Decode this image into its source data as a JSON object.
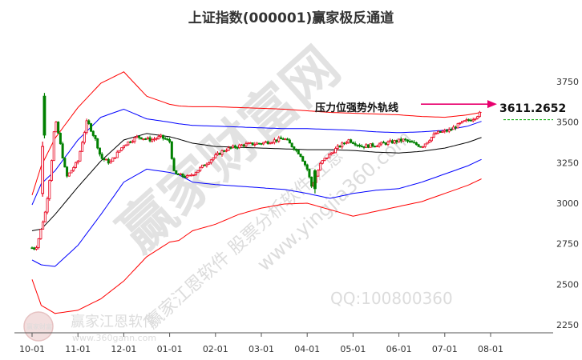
{
  "chart_data": {
    "type": "line",
    "title": "上证指数(000001)赢家极反通道",
    "ylim": [
      2225,
      3875
    ],
    "y_ticks": [
      2250,
      2500,
      2750,
      3000,
      3250,
      3500,
      3750
    ],
    "x_ticks": [
      "10-01",
      "11-01",
      "12-01",
      "01-01",
      "02-01",
      "03-01",
      "04-01",
      "05-01",
      "06-01",
      "07-01",
      "08-01"
    ],
    "annotation": {
      "text": "压力位强势外轨线",
      "value": "3611.2652"
    },
    "watermarks": {
      "main": "赢家财富网",
      "diag1": "赢家江恩软件 股票分析软件 江恩",
      "site": "www.yingjia360.com",
      "qq": "QQ:100800360",
      "logo_text": "赢家江恩软件",
      "logo_site": "www.360gann.com",
      "seal": "赢家财富"
    },
    "colors": {
      "candle_up": "#e8001c",
      "candle_down": "#008000",
      "outer_band": "#ff0000",
      "inner_band": "#0000ff",
      "middle_line": "#000000",
      "arrow": "#e8006e",
      "dashed_ref": "#00aa00"
    },
    "series": [
      {
        "key": "upper_outer",
        "x": [
          0,
          0.2,
          0.5,
          1,
          1.5,
          2,
          2.5,
          3,
          3.2,
          3.5,
          4,
          4.5,
          5,
          5.5,
          6,
          6.5,
          7,
          7.5,
          8,
          8.5,
          9,
          9.5,
          9.8
        ],
        "values": [
          3050,
          3230,
          3400,
          3590,
          3740,
          3810,
          3660,
          3610,
          3600,
          3595,
          3595,
          3590,
          3585,
          3580,
          3570,
          3560,
          3555,
          3550,
          3545,
          3535,
          3530,
          3545,
          3560
        ]
      },
      {
        "key": "upper_inner",
        "x": [
          0,
          0.2,
          0.5,
          1,
          1.5,
          2,
          2.5,
          3,
          3.2,
          3.5,
          4,
          4.5,
          5,
          5.5,
          6,
          6.5,
          7,
          7.5,
          8,
          8.5,
          9,
          9.5,
          9.8
        ],
        "values": [
          2990,
          3120,
          3200,
          3390,
          3530,
          3580,
          3520,
          3500,
          3490,
          3480,
          3475,
          3470,
          3465,
          3460,
          3460,
          3455,
          3450,
          3440,
          3435,
          3440,
          3450,
          3475,
          3505
        ]
      },
      {
        "key": "middle",
        "x": [
          0,
          0.2,
          0.5,
          1,
          1.5,
          2,
          2.5,
          3,
          3.2,
          3.5,
          4,
          4.5,
          5,
          5.5,
          6,
          6.5,
          7,
          7.5,
          8,
          8.5,
          9,
          9.5,
          9.8
        ],
        "values": [
          2830,
          2840,
          2930,
          3100,
          3260,
          3390,
          3430,
          3410,
          3395,
          3370,
          3350,
          3345,
          3340,
          3335,
          3330,
          3330,
          3325,
          3315,
          3310,
          3320,
          3340,
          3375,
          3405
        ]
      },
      {
        "key": "lower_inner",
        "x": [
          0,
          0.2,
          0.5,
          1,
          1.5,
          2,
          2.5,
          3,
          3.2,
          3.5,
          4,
          4.5,
          5,
          5.5,
          6,
          6.5,
          7,
          7.5,
          8,
          8.5,
          9,
          9.5,
          9.8
        ],
        "values": [
          2650,
          2620,
          2610,
          2740,
          2930,
          3130,
          3210,
          3190,
          3175,
          3130,
          3115,
          3105,
          3095,
          3085,
          3060,
          3030,
          3060,
          3080,
          3090,
          3130,
          3180,
          3230,
          3270
        ]
      },
      {
        "key": "lower_outer",
        "x": [
          0,
          0.2,
          0.5,
          1,
          1.5,
          2,
          2.5,
          3,
          3.2,
          3.5,
          4,
          4.5,
          5,
          5.5,
          6,
          6.5,
          7,
          7.5,
          8,
          8.5,
          9,
          9.5,
          9.8
        ],
        "values": [
          2530,
          2370,
          2320,
          2340,
          2410,
          2520,
          2670,
          2760,
          2770,
          2830,
          2870,
          2930,
          2970,
          2995,
          3000,
          2960,
          2920,
          2950,
          2980,
          3010,
          3060,
          3110,
          3150
        ]
      }
    ],
    "price_path": {
      "x": [
        0,
        0.08,
        0.15,
        0.3,
        0.42,
        0.5,
        0.58,
        0.75,
        1,
        1.15,
        1.2,
        1.4,
        1.5,
        1.7,
        2,
        2.3,
        2.6,
        2.8,
        3,
        3.1,
        3.4,
        3.6,
        3.9,
        4.2,
        4.6,
        5,
        5.5,
        5.75,
        5.85,
        6.0,
        6.1,
        6.3,
        6.6,
        6.9,
        7.2,
        7.5,
        7.9,
        8.1,
        8.5,
        8.8,
        9.1,
        9.4,
        9.6,
        9.8
      ],
      "values": [
        2725,
        2720,
        2790,
        2960,
        3240,
        3520,
        3420,
        3160,
        3260,
        3450,
        3510,
        3380,
        3280,
        3250,
        3360,
        3410,
        3390,
        3410,
        3380,
        3180,
        3160,
        3200,
        3270,
        3330,
        3360,
        3370,
        3400,
        3330,
        3300,
        3210,
        3100,
        3250,
        3330,
        3390,
        3350,
        3360,
        3380,
        3390,
        3350,
        3430,
        3450,
        3500,
        3520,
        3560
      ]
    }
  }
}
